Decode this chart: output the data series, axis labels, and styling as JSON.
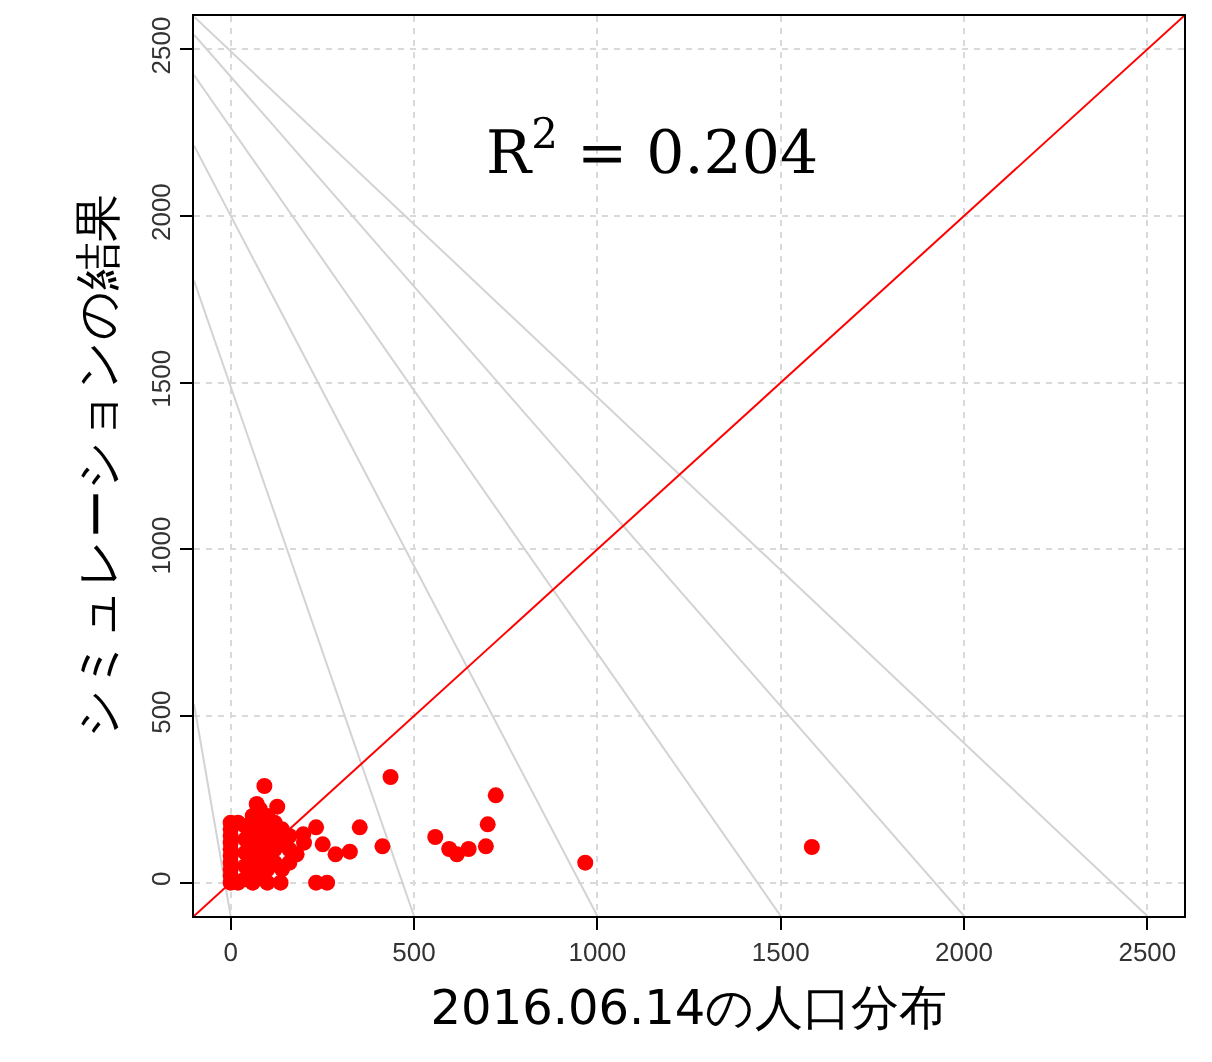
{
  "chart_data": {
    "type": "scatter",
    "xlabel": "2016.06.14の人口分布",
    "ylabel": "シミュレーションの結果",
    "annotations": [
      "R$^{2}$ = 0.204"
    ],
    "xlim": [
      -100,
      2600
    ],
    "ylim": [
      -100,
      2600
    ],
    "xticks": [
      0,
      500,
      1000,
      1500,
      2000,
      2500
    ],
    "yticks": [
      0,
      500,
      1000,
      1500,
      2000,
      2500
    ],
    "grid": true,
    "series": [
      {
        "type": "line",
        "color": "#d3d3d3",
        "x": [
          -100,
          0
        ],
        "values": [
          536,
          -100
        ]
      },
      {
        "type": "line",
        "color": "#d3d3d3",
        "x": [
          -100,
          500
        ],
        "values": [
          1806,
          -100
        ]
      },
      {
        "type": "line",
        "color": "#d3d3d3",
        "x": [
          -100,
          1000
        ],
        "values": [
          2211,
          -100
        ]
      },
      {
        "type": "line",
        "color": "#d3d3d3",
        "x": [
          -100,
          1500
        ],
        "values": [
          2423,
          -100
        ]
      },
      {
        "type": "line",
        "color": "#d3d3d3",
        "x": [
          -100,
          2000
        ],
        "values": [
          2544,
          -100
        ]
      },
      {
        "type": "line",
        "color": "#d3d3d3",
        "x": [
          -100,
          2500
        ],
        "values": [
          2598,
          -100
        ]
      },
      {
        "type": "line",
        "color": "#ff0000",
        "x": [
          -100,
          2600
        ],
        "values": [
          -100,
          2600
        ]
      },
      {
        "color": "#ff0000",
        "marker": "circle",
        "x": [
          0,
          0,
          0,
          0,
          0,
          0,
          0,
          0,
          0,
          0,
          20,
          20,
          40,
          40,
          40,
          40,
          40,
          60,
          60,
          60,
          60,
          60,
          60,
          80,
          80,
          80,
          80,
          80,
          80,
          100,
          100,
          100,
          100,
          100,
          100,
          120,
          120,
          120,
          120,
          140,
          140,
          140,
          160,
          160,
          160,
          180,
          200,
          198,
          233,
          251,
          71,
          127,
          92,
          436,
          723,
          701,
          696,
          649,
          617,
          596,
          558,
          967,
          414,
          352,
          325,
          286,
          233,
          263,
          136,
          1585
        ],
        "values": [
          0,
          20,
          40,
          60,
          80,
          100,
          120,
          140,
          160,
          180,
          0,
          180,
          10,
          50,
          90,
          130,
          170,
          0,
          40,
          80,
          120,
          160,
          200,
          20,
          60,
          100,
          140,
          180,
          220,
          0,
          40,
          80,
          120,
          160,
          200,
          60,
          100,
          140,
          180,
          40,
          120,
          160,
          60,
          100,
          140,
          85,
          120,
          145,
          166,
          115,
          236,
          228,
          290,
          317,
          262,
          175,
          109,
          101,
          85,
          101,
          137,
          60,
          109,
          166,
          93,
          85,
          0,
          0,
          0,
          107
        ]
      }
    ]
  }
}
